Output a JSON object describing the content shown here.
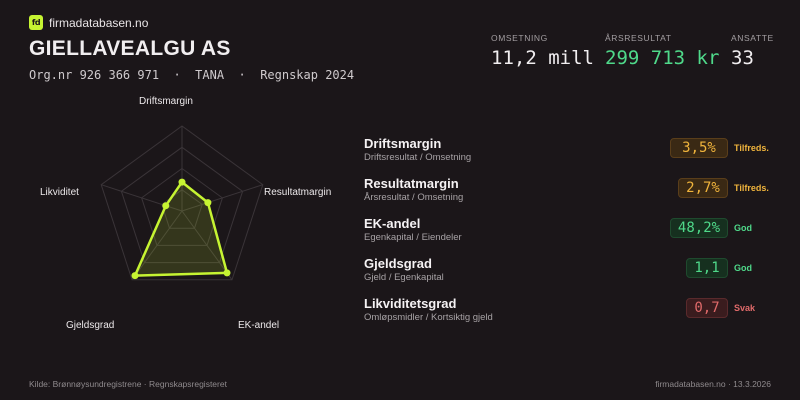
{
  "brand": {
    "logo_text": "fd",
    "name": "firmadatabasen.no"
  },
  "company": {
    "name": "GIELLAVEALGU AS",
    "subtitle": "Org.nr 926 366 971  ·  TANA  ·  Regnskap 2024"
  },
  "kpis": [
    {
      "label": "OMSETNING",
      "value": "11,2 mill"
    },
    {
      "label": "ÅRSRESULTAT",
      "value": "299 713 kr"
    },
    {
      "label": "ANSATTE",
      "value": "33"
    }
  ],
  "colors": {
    "background": "#1b1619",
    "accent": "#c6f432",
    "positive": "#4fd98a",
    "warning": "#f0b43c",
    "negative": "#e06a6a"
  },
  "radar": {
    "axes": [
      "Driftsmargin",
      "Resultatmargin",
      "EK-andel",
      "Gjeldsgrad",
      "Likviditet"
    ],
    "levels": 4,
    "values": [
      0.34,
      0.32,
      0.9,
      0.94,
      0.2
    ]
  },
  "metrics": [
    {
      "name": "Driftsmargin",
      "desc": "Driftsresultat / Omsetning",
      "value": "3,5%",
      "status": "Tilfreds.",
      "tone": "warning"
    },
    {
      "name": "Resultatmargin",
      "desc": "Årsresultat / Omsetning",
      "value": "2,7%",
      "status": "Tilfreds.",
      "tone": "warning"
    },
    {
      "name": "EK-andel",
      "desc": "Egenkapital / Eiendeler",
      "value": "48,2%",
      "status": "God",
      "tone": "positive"
    },
    {
      "name": "Gjeldsgrad",
      "desc": "Gjeld / Egenkapital",
      "value": "1,1",
      "status": "God",
      "tone": "positive"
    },
    {
      "name": "Likviditetsgrad",
      "desc": "Omløpsmidler / Kortsiktig gjeld",
      "value": "0,7",
      "status": "Svak",
      "tone": "negative"
    }
  ],
  "footer": {
    "source": "Kilde: Brønnøysundregistrene · Regnskapsregisteret",
    "site_date": "firmadatabasen.no · 13.3.2026"
  }
}
